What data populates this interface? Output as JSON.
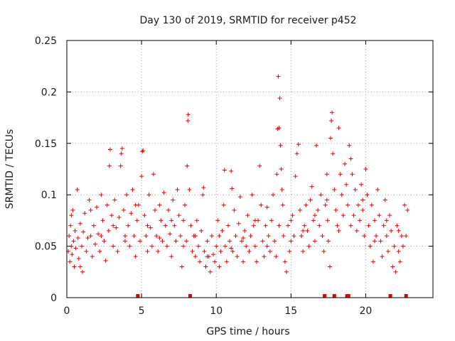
{
  "chart_data": {
    "type": "scatter",
    "title": "Day 130 of 2019, SRMTID for receiver p452",
    "xlabel": "GPS time / hours",
    "ylabel": "SRMTID / TECUs",
    "xlim": [
      0,
      24.5
    ],
    "ylim": [
      0,
      0.25
    ],
    "x_ticks": [
      0,
      5,
      10,
      15,
      20
    ],
    "x_tick_labels": [
      "0",
      "5",
      "10",
      "15",
      "20"
    ],
    "y_ticks": [
      0,
      0.05,
      0.1,
      0.15,
      0.2,
      0.25
    ],
    "y_tick_labels": [
      "0",
      "0.05",
      "0.1",
      "0.15",
      "0.2",
      "0.25"
    ],
    "grid": true,
    "marker": "+",
    "color": "#ee0000",
    "series": [
      {
        "name": "SRMTID",
        "points": [
          [
            0.1,
            0.045
          ],
          [
            0.15,
            0.06
          ],
          [
            0.2,
            0.035
          ],
          [
            0.25,
            0.07
          ],
          [
            0.3,
            0.05
          ],
          [
            0.35,
            0.042
          ],
          [
            0.4,
            0.085
          ],
          [
            0.45,
            0.055
          ],
          [
            0.5,
            0.03
          ],
          [
            0.55,
            0.065
          ],
          [
            0.6,
            0.048
          ],
          [
            0.7,
            0.105
          ],
          [
            0.75,
            0.058
          ],
          [
            0.8,
            0.038
          ],
          [
            0.9,
            0.072
          ],
          [
            1.0,
            0.05
          ],
          [
            1.05,
            0.025
          ],
          [
            1.1,
            0.064
          ],
          [
            1.2,
            0.082
          ],
          [
            1.3,
            0.045
          ],
          [
            1.4,
            0.058
          ],
          [
            1.5,
            0.095
          ],
          [
            1.6,
            0.06
          ],
          [
            1.7,
            0.04
          ],
          [
            1.8,
            0.07
          ],
          [
            1.9,
            0.052
          ],
          [
            2.0,
            0.088
          ],
          [
            2.1,
            0.062
          ],
          [
            2.2,
            0.045
          ],
          [
            2.3,
            0.1
          ],
          [
            2.4,
            0.075
          ],
          [
            2.5,
            0.055
          ],
          [
            2.6,
            0.036
          ],
          [
            2.7,
            0.09
          ],
          [
            2.8,
            0.065
          ],
          [
            2.85,
            0.128
          ],
          [
            2.9,
            0.144
          ],
          [
            3.0,
            0.08
          ],
          [
            3.1,
            0.05
          ],
          [
            3.2,
            0.095
          ],
          [
            3.3,
            0.068
          ],
          [
            3.4,
            0.045
          ],
          [
            3.5,
            0.078
          ],
          [
            3.6,
            0.128
          ],
          [
            3.65,
            0.14
          ],
          [
            3.7,
            0.145
          ],
          [
            3.8,
            0.085
          ],
          [
            3.9,
            0.06
          ],
          [
            4.0,
            0.1
          ],
          [
            4.1,
            0.07
          ],
          [
            4.2,
            0.05
          ],
          [
            4.3,
            0.082
          ],
          [
            4.4,
            0.105
          ],
          [
            4.5,
            0.06
          ],
          [
            4.6,
            0.04
          ],
          [
            4.7,
            0.075
          ],
          [
            4.8,
            0.09
          ],
          [
            4.9,
            0.055
          ],
          [
            5.0,
            0.118
          ],
          [
            5.05,
            0.142
          ],
          [
            5.1,
            0.143
          ],
          [
            5.2,
            0.08
          ],
          [
            5.3,
            0.06
          ],
          [
            5.4,
            0.045
          ],
          [
            5.5,
            0.1
          ],
          [
            5.6,
            0.068
          ],
          [
            5.7,
            0.05
          ],
          [
            5.8,
            0.12
          ],
          [
            5.9,
            0.085
          ],
          [
            6.0,
            0.06
          ],
          [
            6.1,
            0.045
          ],
          [
            6.2,
            0.09
          ],
          [
            6.3,
            0.075
          ],
          [
            6.4,
            0.055
          ],
          [
            6.5,
            0.102
          ],
          [
            6.6,
            0.07
          ],
          [
            6.7,
            0.05
          ],
          [
            6.8,
            0.085
          ],
          [
            6.9,
            0.062
          ],
          [
            7.0,
            0.04
          ],
          [
            7.1,
            0.095
          ],
          [
            7.2,
            0.07
          ],
          [
            7.3,
            0.055
          ],
          [
            7.4,
            0.105
          ],
          [
            7.5,
            0.08
          ],
          [
            7.6,
            0.06
          ],
          [
            7.7,
            0.03
          ],
          [
            7.8,
            0.075
          ],
          [
            7.9,
            0.09
          ],
          [
            8.0,
            0.055
          ],
          [
            8.05,
            0.128
          ],
          [
            8.1,
            0.172
          ],
          [
            8.12,
            0.178
          ],
          [
            8.2,
            0.105
          ],
          [
            8.3,
            0.07
          ],
          [
            8.4,
            0.045
          ],
          [
            8.5,
            0.06
          ],
          [
            8.6,
            0.04
          ],
          [
            8.7,
            0.075
          ],
          [
            8.8,
            0.05
          ],
          [
            8.9,
            0.035
          ],
          [
            9.0,
            0.065
          ],
          [
            9.1,
            0.1
          ],
          [
            9.15,
            0.107
          ],
          [
            9.2,
            0.045
          ],
          [
            9.3,
            0.03
          ],
          [
            9.4,
            0.055
          ],
          [
            9.5,
            0.04
          ],
          [
            9.6,
            0.025
          ],
          [
            9.7,
            0.06
          ],
          [
            9.8,
            0.042
          ],
          [
            9.9,
            0.035
          ],
          [
            10.0,
            0.05
          ],
          [
            10.1,
            0.075
          ],
          [
            10.2,
            0.03
          ],
          [
            10.3,
            0.045
          ],
          [
            10.4,
            0.065
          ],
          [
            10.5,
            0.09
          ],
          [
            10.55,
            0.124
          ],
          [
            10.6,
            0.05
          ],
          [
            10.7,
            0.035
          ],
          [
            10.8,
            0.07
          ],
          [
            10.9,
            0.055
          ],
          [
            11.0,
            0.123
          ],
          [
            11.05,
            0.106
          ],
          [
            11.1,
            0.045
          ],
          [
            11.2,
            0.085
          ],
          [
            11.3,
            0.06
          ],
          [
            11.4,
            0.04
          ],
          [
            11.5,
            0.072
          ],
          [
            11.6,
            0.098
          ],
          [
            11.7,
            0.055
          ],
          [
            11.8,
            0.035
          ],
          [
            11.9,
            0.065
          ],
          [
            12.0,
            0.05
          ],
          [
            12.1,
            0.08
          ],
          [
            12.2,
            0.045
          ],
          [
            12.3,
            0.06
          ],
          [
            12.4,
            0.1
          ],
          [
            12.5,
            0.07
          ],
          [
            12.6,
            0.05
          ],
          [
            12.7,
            0.035
          ],
          [
            12.8,
            0.075
          ],
          [
            12.9,
            0.128
          ],
          [
            13.0,
            0.09
          ],
          [
            13.1,
            0.055
          ],
          [
            13.2,
            0.04
          ],
          [
            13.3,
            0.07
          ],
          [
            13.4,
            0.088
          ],
          [
            13.5,
            0.06
          ],
          [
            13.6,
            0.045
          ],
          [
            13.7,
            0.075
          ],
          [
            13.8,
            0.1
          ],
          [
            13.9,
            0.055
          ],
          [
            14.0,
            0.04
          ],
          [
            14.05,
            0.12
          ],
          [
            14.1,
            0.164
          ],
          [
            14.15,
            0.215
          ],
          [
            14.2,
            0.165
          ],
          [
            14.25,
            0.194
          ],
          [
            14.3,
            0.148
          ],
          [
            14.35,
            0.125
          ],
          [
            14.4,
            0.105
          ],
          [
            14.45,
            0.09
          ],
          [
            14.5,
            0.06
          ],
          [
            14.6,
            0.035
          ],
          [
            14.7,
            0.025
          ],
          [
            14.8,
            0.07
          ],
          [
            14.9,
            0.045
          ],
          [
            15.0,
            0.055
          ],
          [
            15.1,
            0.08
          ],
          [
            15.2,
            0.06
          ],
          [
            15.3,
            0.118
          ],
          [
            15.4,
            0.14
          ],
          [
            15.5,
            0.149
          ],
          [
            15.6,
            0.085
          ],
          [
            15.7,
            0.06
          ],
          [
            15.8,
            0.045
          ],
          [
            15.9,
            0.07
          ],
          [
            16.0,
            0.09
          ],
          [
            16.1,
            0.065
          ],
          [
            16.2,
            0.05
          ],
          [
            16.3,
            0.095
          ],
          [
            16.4,
            0.108
          ],
          [
            16.5,
            0.075
          ],
          [
            16.6,
            0.055
          ],
          [
            16.7,
            0.148
          ],
          [
            16.8,
            0.085
          ],
          [
            16.9,
            0.07
          ],
          [
            17.0,
            0.1
          ],
          [
            17.1,
            0.06
          ],
          [
            17.2,
            0.045
          ],
          [
            17.3,
            0.09
          ],
          [
            17.4,
            0.12
          ],
          [
            17.45,
            0.075
          ],
          [
            17.5,
            0.055
          ],
          [
            17.6,
            0.03
          ],
          [
            17.65,
            0.155
          ],
          [
            17.7,
            0.172
          ],
          [
            17.75,
            0.18
          ],
          [
            17.8,
            0.14
          ],
          [
            17.9,
            0.105
          ],
          [
            18.0,
            0.085
          ],
          [
            18.1,
            0.07
          ],
          [
            18.2,
            0.165
          ],
          [
            18.3,
            0.12
          ],
          [
            18.4,
            0.1
          ],
          [
            18.5,
            0.08
          ],
          [
            18.6,
            0.13
          ],
          [
            18.7,
            0.11
          ],
          [
            18.8,
            0.09
          ],
          [
            18.9,
            0.148
          ],
          [
            19.0,
            0.135
          ],
          [
            19.1,
            0.12
          ],
          [
            19.2,
            0.08
          ],
          [
            19.3,
            0.105
          ],
          [
            19.4,
            0.065
          ],
          [
            19.5,
            0.09
          ],
          [
            19.6,
            0.075
          ],
          [
            19.7,
            0.11
          ],
          [
            19.8,
            0.085
          ],
          [
            19.9,
            0.06
          ],
          [
            20.0,
            0.125
          ],
          [
            20.1,
            0.1
          ],
          [
            20.2,
            0.07
          ],
          [
            20.3,
            0.05
          ],
          [
            20.4,
            0.09
          ],
          [
            20.5,
            0.035
          ],
          [
            20.6,
            0.075
          ],
          [
            20.7,
            0.06
          ],
          [
            20.8,
            0.105
          ],
          [
            20.9,
            0.08
          ],
          [
            21.0,
            0.055
          ],
          [
            21.1,
            0.04
          ],
          [
            21.2,
            0.07
          ],
          [
            21.3,
            0.095
          ],
          [
            21.4,
            0.06
          ],
          [
            21.5,
            0.045
          ],
          [
            21.6,
            0.08
          ],
          [
            21.7,
            0.065
          ],
          [
            21.8,
            0.03
          ],
          [
            21.9,
            0.05
          ],
          [
            22.0,
            0.025
          ],
          [
            22.1,
            0.07
          ],
          [
            22.2,
            0.045
          ],
          [
            22.3,
            0.035
          ],
          [
            22.4,
            0.06
          ],
          [
            22.5,
            0.05
          ],
          [
            22.6,
            0.09
          ],
          [
            22.7,
            0.06
          ],
          [
            0.3,
            0.08
          ],
          [
            0.9,
            0.03
          ],
          [
            1.6,
            0.085
          ],
          [
            2.3,
            0.06
          ],
          [
            3.1,
            0.07
          ],
          [
            3.9,
            0.055
          ],
          [
            4.6,
            0.09
          ],
          [
            5.4,
            0.07
          ],
          [
            6.2,
            0.058
          ],
          [
            7.0,
            0.075
          ],
          [
            7.8,
            0.05
          ],
          [
            8.6,
            0.06
          ],
          [
            9.4,
            0.04
          ],
          [
            10.2,
            0.06
          ],
          [
            11.0,
            0.048
          ],
          [
            11.8,
            0.058
          ],
          [
            12.6,
            0.075
          ],
          [
            13.4,
            0.05
          ],
          [
            14.2,
            0.07
          ],
          [
            15.0,
            0.075
          ],
          [
            15.8,
            0.065
          ],
          [
            16.6,
            0.08
          ],
          [
            17.4,
            0.095
          ],
          [
            18.2,
            0.065
          ],
          [
            19.0,
            0.07
          ],
          [
            19.8,
            0.095
          ],
          [
            20.6,
            0.055
          ],
          [
            21.4,
            0.075
          ],
          [
            22.2,
            0.065
          ],
          [
            22.8,
            0.085
          ]
        ]
      }
    ],
    "bottom_markers_x": [
      4.75,
      8.25,
      17.25,
      17.9,
      18.75,
      18.85,
      21.65,
      22.7
    ]
  }
}
